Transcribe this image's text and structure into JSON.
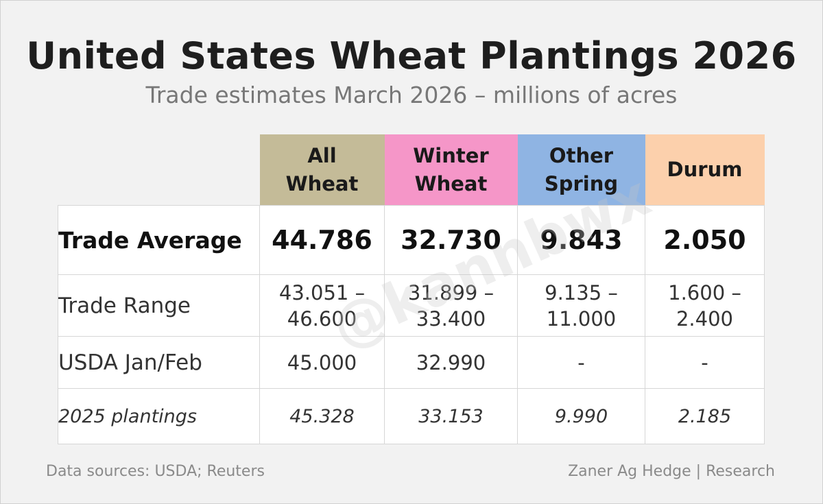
{
  "title": "United States Wheat Plantings 2026",
  "subtitle": "Trade estimates March 2026 – millions of acres",
  "watermark": "@kannbwx",
  "colors": {
    "all_wheat": "#c4bb98",
    "winter_wheat": "#f596c8",
    "other_spring": "#8fb4e3",
    "durum": "#fcd0ac"
  },
  "chart_data": {
    "type": "table",
    "title": "United States Wheat Plantings 2026",
    "subtitle": "Trade estimates March 2026 – millions of acres",
    "columns": [
      "All Wheat",
      "Winter Wheat",
      "Other Spring",
      "Durum"
    ],
    "rows": [
      {
        "label": "Trade Average",
        "values": [
          "44.786",
          "32.730",
          "9.843",
          "2.050"
        ]
      },
      {
        "label": "Trade Range",
        "values": [
          {
            "low": "43.051 –",
            "high": "46.600"
          },
          {
            "low": "31.899 –",
            "high": "33.400"
          },
          {
            "low": "9.135 –",
            "high": "11.000"
          },
          {
            "low": "1.600 –",
            "high": "2.400"
          }
        ]
      },
      {
        "label": "USDA Jan/Feb",
        "values": [
          "45.000",
          "32.990",
          "-",
          "-"
        ]
      },
      {
        "label": "2025 plantings",
        "values": [
          "45.328",
          "33.153",
          "9.990",
          "2.185"
        ]
      }
    ]
  },
  "footer": {
    "sources": "Data sources: USDA; Reuters",
    "credit": "Zaner Ag Hedge | Research"
  }
}
